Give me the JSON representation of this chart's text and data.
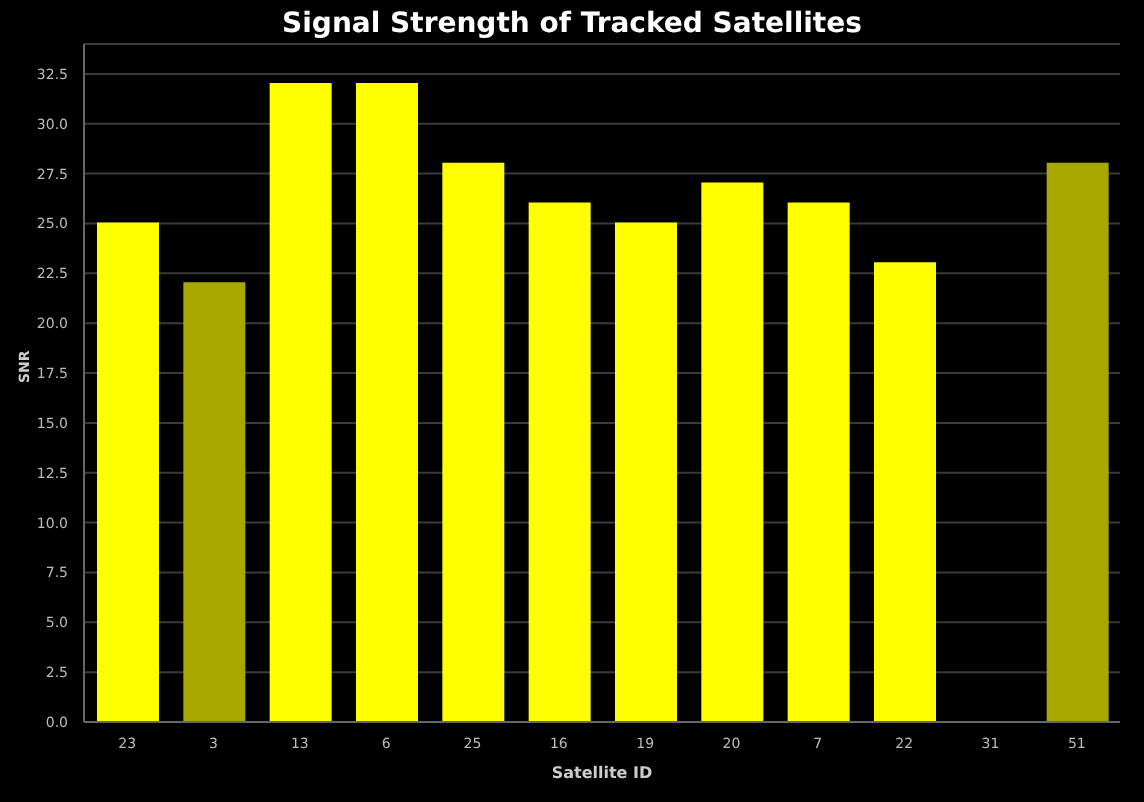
{
  "chart_data": {
    "type": "bar",
    "title": "Signal Strength of Tracked Satellites",
    "xlabel": "Satellite ID",
    "ylabel": "SNR",
    "categories": [
      "23",
      "3",
      "13",
      "6",
      "25",
      "16",
      "19",
      "20",
      "7",
      "22",
      "31",
      "51"
    ],
    "values": [
      25,
      22,
      32,
      32,
      28,
      26,
      25,
      27,
      26,
      23,
      null,
      28
    ],
    "colors": [
      "#ffff00",
      "#a8a800",
      "#ffff00",
      "#ffff00",
      "#ffff00",
      "#ffff00",
      "#ffff00",
      "#ffff00",
      "#ffff00",
      "#ffff00",
      "#ffff00",
      "#a8a800"
    ],
    "ylim": [
      0,
      34
    ],
    "yticks": [
      {
        "value": 0,
        "label": "0.0"
      },
      2.5,
      {
        "value": 5,
        "label": "5.0"
      },
      7.5,
      {
        "value": 10,
        "label": "10.0"
      },
      12.5,
      {
        "value": 15,
        "label": "15.0"
      },
      17.5,
      {
        "value": 20,
        "label": "20.0"
      },
      22.5,
      {
        "value": 25,
        "label": "25.0"
      },
      27.5,
      {
        "value": 30,
        "label": "30.0"
      },
      32.5
    ],
    "grid": "y"
  }
}
